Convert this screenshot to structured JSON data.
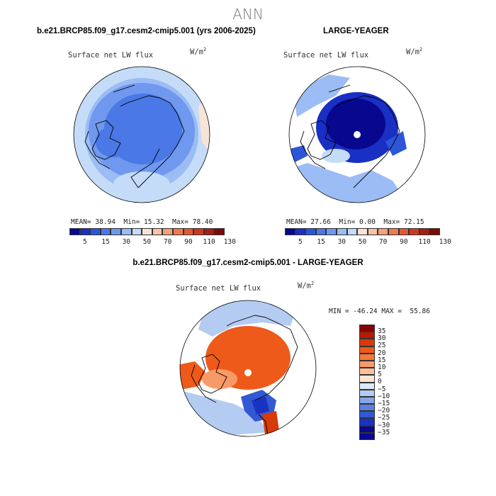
{
  "main_title": "ANN",
  "panel1": {
    "header": "b.e21.BRCP85.f09_g17.cesm2-cmip5.001 (yrs 2006-2025)",
    "variable": "Surface net LW flux",
    "units_base": "W/m",
    "units_exp": "2",
    "stats": {
      "mean_label": "MEAN=",
      "mean": "38.94",
      "min_label": "Min=",
      "min": "15.32",
      "max_label": "Max=",
      "max": "78.40"
    },
    "colorbar_labels": [
      "5",
      "15",
      "30",
      "50",
      "70",
      "90",
      "110",
      "130"
    ]
  },
  "panel2": {
    "header": "LARGE-YEAGER",
    "variable": "Surface net LW flux",
    "units_base": "W/m",
    "units_exp": "2",
    "stats": {
      "mean_label": "MEAN=",
      "mean": "27.66",
      "min_label": "Min=",
      "min": "0.00",
      "max_label": "Max=",
      "max": "72.15"
    },
    "colorbar_labels": [
      "5",
      "15",
      "30",
      "50",
      "70",
      "90",
      "110",
      "130"
    ]
  },
  "panel3": {
    "header": "b.e21.BRCP85.f09_g17.cesm2-cmip5.001 - LARGE-YEAGER",
    "variable": "Surface net LW flux",
    "units_base": "W/m",
    "units_exp": "2",
    "minmax": "MIN = -46.24 MAX =  55.86",
    "colorbar_labels": [
      "35",
      "30",
      "25",
      "20",
      "15",
      "10",
      "5",
      "0",
      "−5",
      "−10",
      "−15",
      "−20",
      "−25",
      "−30",
      "−35"
    ]
  },
  "colors": {
    "abs_scale": [
      "#08088f",
      "#1a2fc4",
      "#2d55d9",
      "#4a78e6",
      "#6f98ee",
      "#9bbcf4",
      "#c4dcf8",
      "#f8e4d6",
      "#f8c4a6",
      "#f4a07a",
      "#ee7a52",
      "#e25a34",
      "#cc3a1e",
      "#a81e12",
      "#7a0a06"
    ],
    "diff_scale": [
      "#8b0000",
      "#b81a00",
      "#d83a0a",
      "#ee5a1a",
      "#f47a3a",
      "#f89a68",
      "#fbc09a",
      "#fce6d4",
      "#dde8f8",
      "#b4cbf2",
      "#86a6ea",
      "#5a80e0",
      "#3258d4",
      "#1a32c0",
      "#08088f"
    ],
    "accent_blue": "#4a78e6",
    "dark_blue": "#08088f",
    "diff_red": "#ee5a1a"
  }
}
